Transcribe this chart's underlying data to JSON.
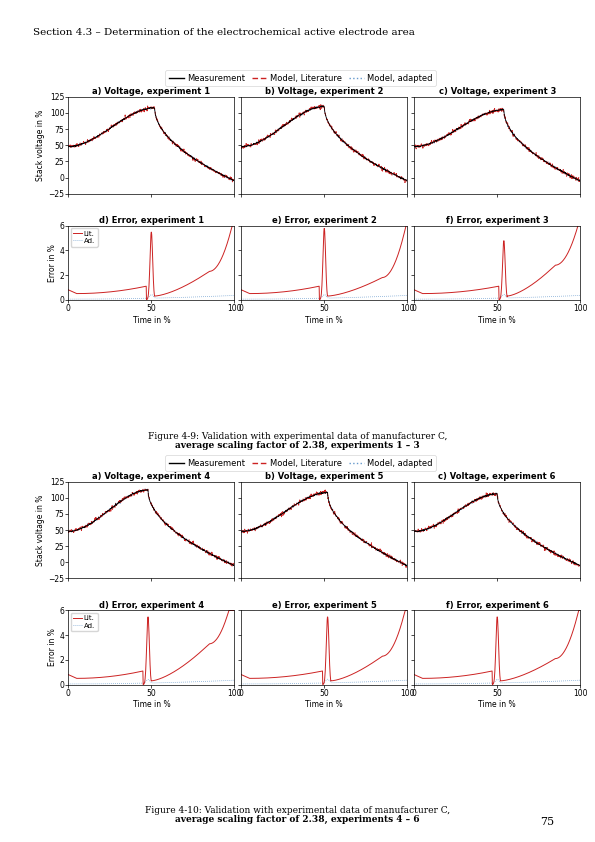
{
  "page_title": "Section 4.3 – Determination of the electrochemical active electrode area",
  "figure1_caption_line1": "Figure 4-9: Validation with experimental data of manufacturer C,",
  "figure1_caption_line2": "average scaling factor of 2.38, experiments 1 – 3",
  "figure2_caption_line1": "Figure 4-10: Validation with experimental data of manufacturer C,",
  "figure2_caption_line2": "average scaling factor of 2.38, experiments 4 – 6",
  "page_number": "75",
  "voltage_titles_fig1": [
    "a) Voltage, experiment 1",
    "b) Voltage, experiment 2",
    "c) Voltage, experiment 3"
  ],
  "error_titles_fig1": [
    "d) Error, experiment 1",
    "e) Error, experiment 2",
    "f) Error, experiment 3"
  ],
  "voltage_titles_fig2": [
    "a) Voltage, experiment 4",
    "b) Voltage, experiment 5",
    "c) Voltage, experiment 6"
  ],
  "error_titles_fig2": [
    "d) Error, experiment 4",
    "e) Error, experiment 5",
    "f) Error, experiment 6"
  ],
  "ylabel_voltage": "Stack voltage in %",
  "ylabel_error": "Error in %",
  "xlabel": "Time in %",
  "voltage_ylim": [
    -25,
    125
  ],
  "voltage_yticks": [
    -25,
    0,
    25,
    50,
    75,
    100,
    125
  ],
  "error_ylim": [
    0,
    6
  ],
  "error_yticks": [
    0,
    2,
    4,
    6
  ],
  "xlim": [
    0,
    100
  ],
  "xticks": [
    0,
    50,
    100
  ],
  "color_measurement": "#000000",
  "color_lit": "#cc2222",
  "color_adapted": "#6699cc",
  "background_color": "#ffffff"
}
